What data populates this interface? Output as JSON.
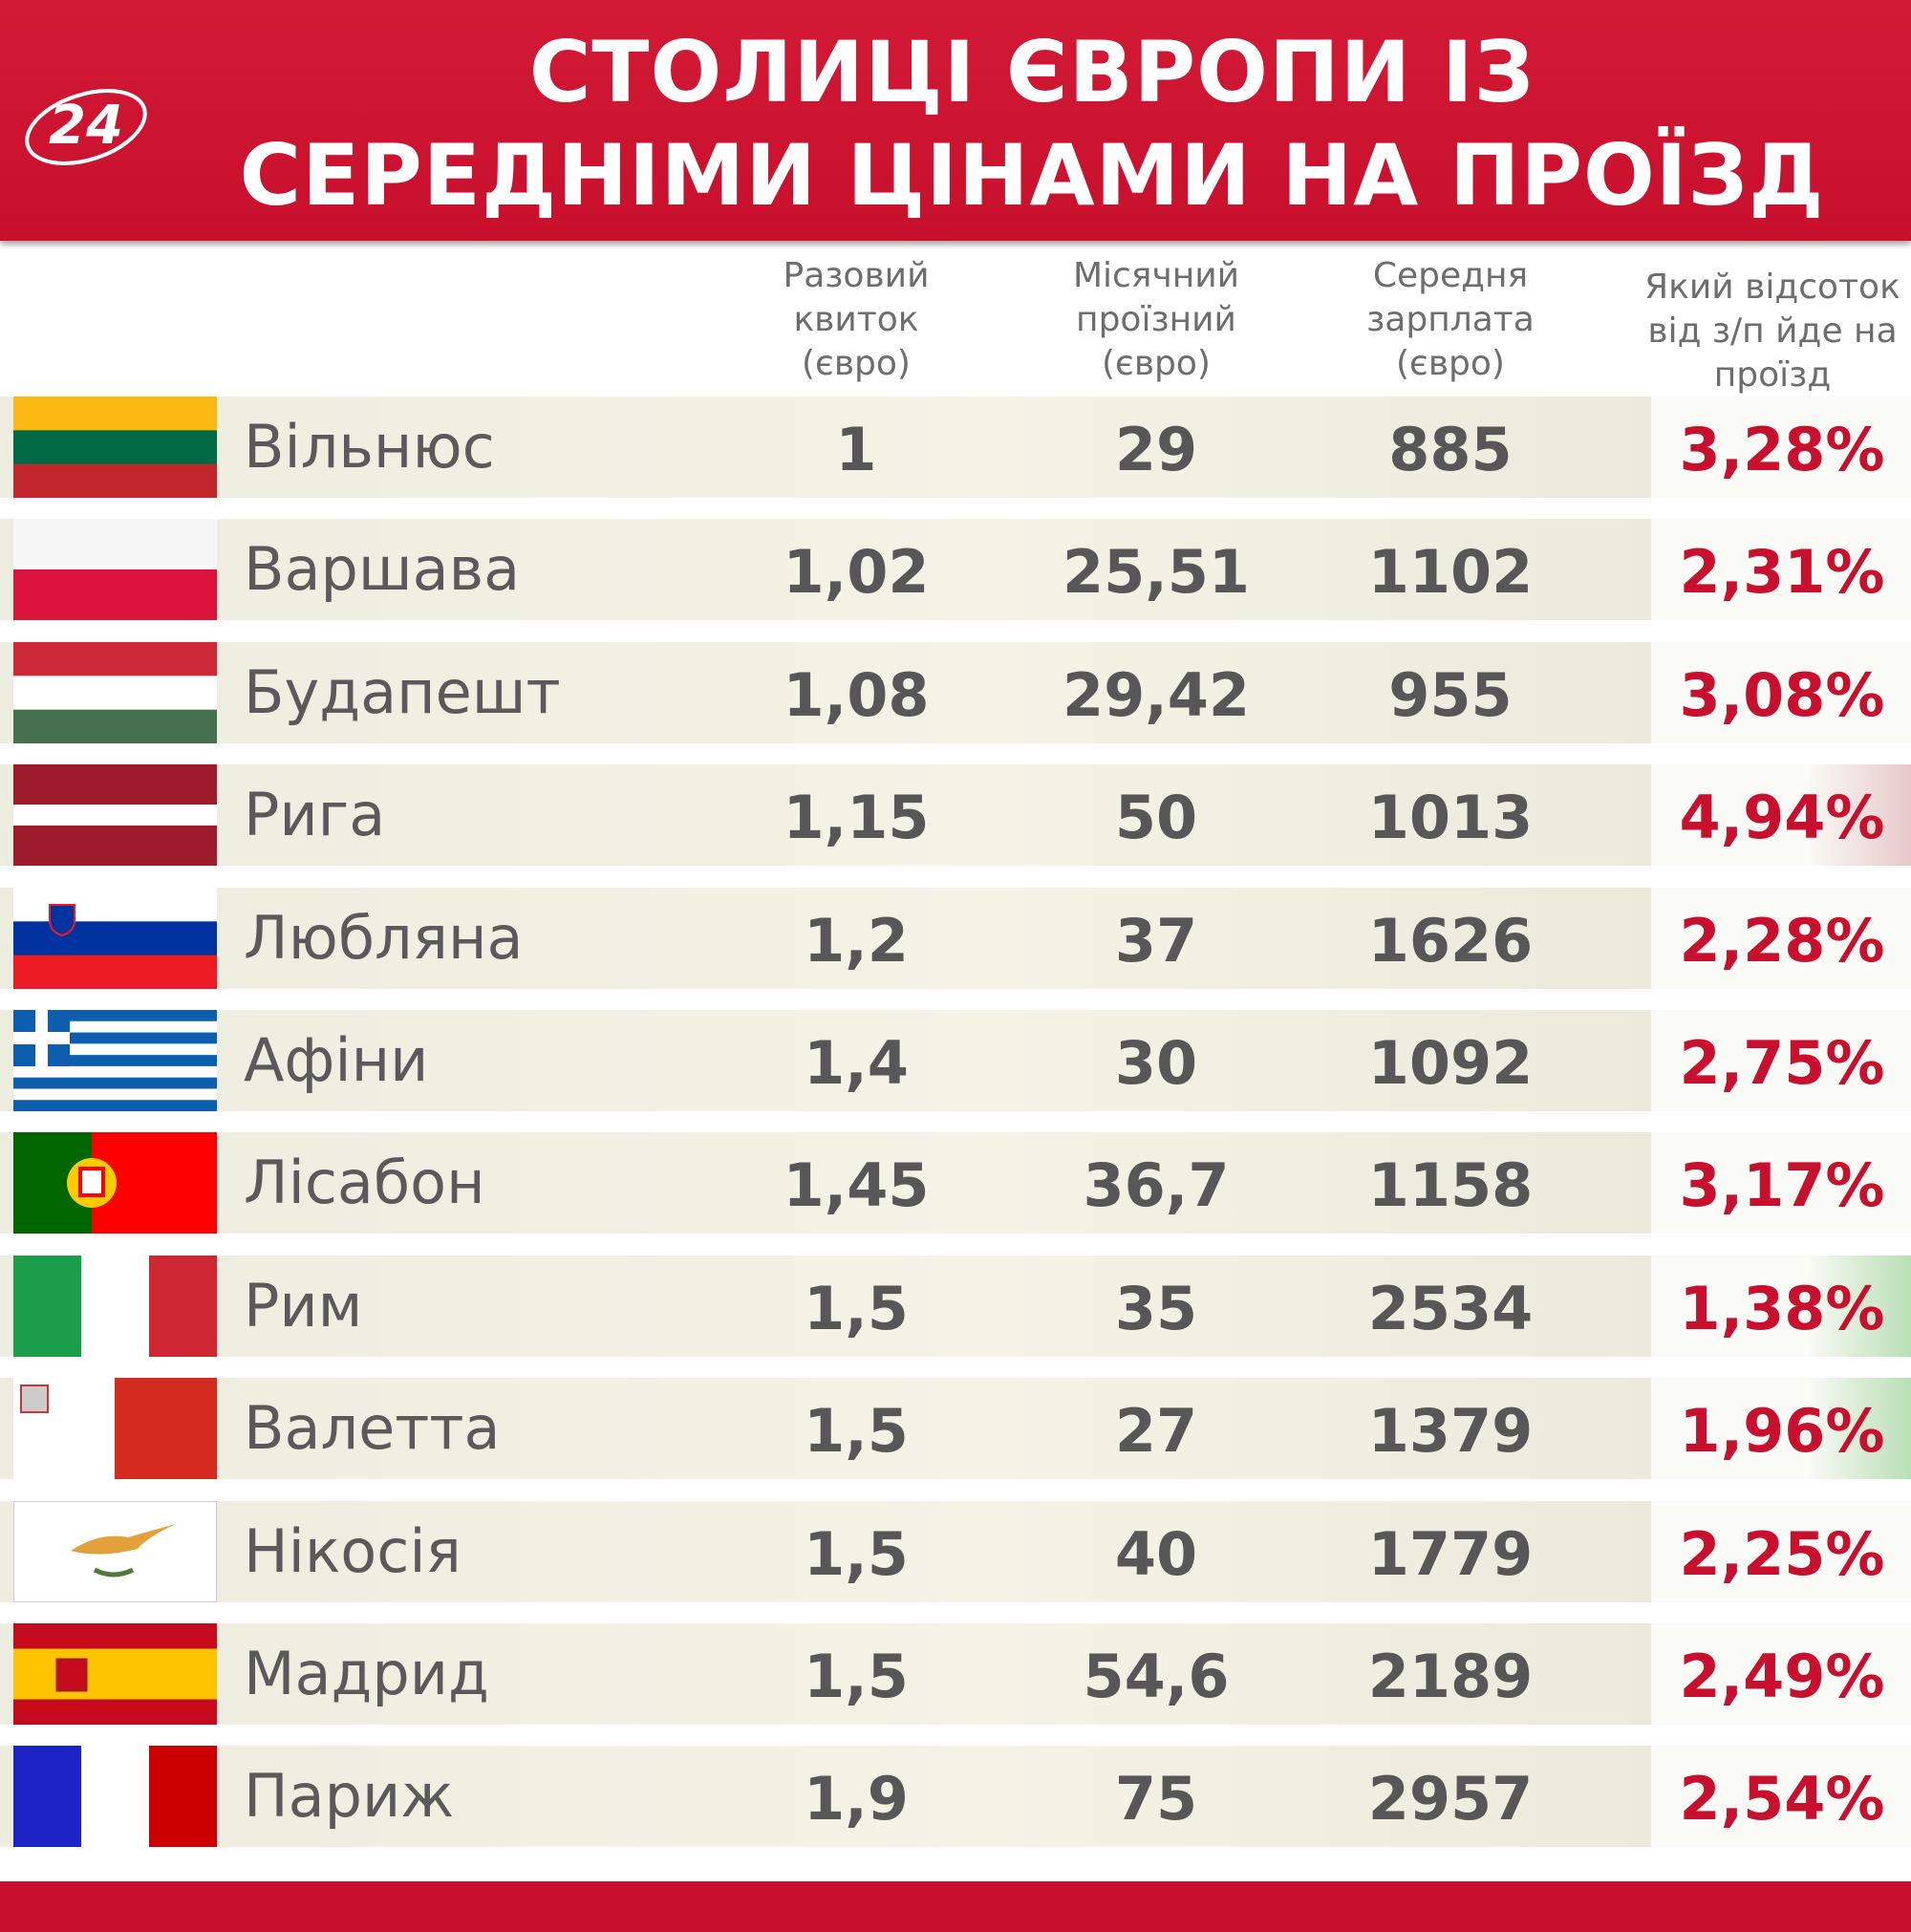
{
  "header": {
    "logo": "24",
    "title_lines": [
      "СТОЛИЦІ ЄВРОПИ ІЗ",
      "СЕРЕДНІМИ ЦІНАМИ НА ПРОЇЗД"
    ]
  },
  "table": {
    "columns": [
      [
        "Разовий",
        "квиток",
        "(євро)"
      ],
      [
        "Місячний",
        "проїзний",
        "(євро)"
      ],
      [
        "Середня",
        "зарплата",
        "(євро)"
      ],
      [
        "Який відсоток",
        "від з/п йде на",
        "проїзд"
      ]
    ],
    "rows": [
      [
        "Вільнюс",
        "1",
        "29",
        "885",
        "3,28%"
      ],
      [
        "Варшава",
        "1,02",
        "25,51",
        "1102",
        "2,31%"
      ],
      [
        "Будапешт",
        "1,08",
        "29,42",
        "955",
        "3,08%"
      ],
      [
        "Рига",
        "1,15",
        "50",
        "1013",
        "4,94%"
      ],
      [
        "Любляна",
        "1,2",
        "37",
        "1626",
        "2,28%"
      ],
      [
        "Афіни",
        "1,4",
        "30",
        "1092",
        "2,75%"
      ],
      [
        "Лісабон",
        "1,45",
        "36,7",
        "1158",
        "3,17%"
      ],
      [
        "Рим",
        "1,5",
        "35",
        "2534",
        "1,38%"
      ],
      [
        "Валетта",
        "1,5",
        "27",
        "1379",
        "1,96%"
      ],
      [
        "Нікосія",
        "1,5",
        "40",
        "1779",
        "2,25%"
      ],
      [
        "Мадрид",
        "1,5",
        "54,6",
        "2189",
        "2,49%"
      ],
      [
        "Париж",
        "1,9",
        "75",
        "2957",
        "2,54%"
      ]
    ]
  }
}
